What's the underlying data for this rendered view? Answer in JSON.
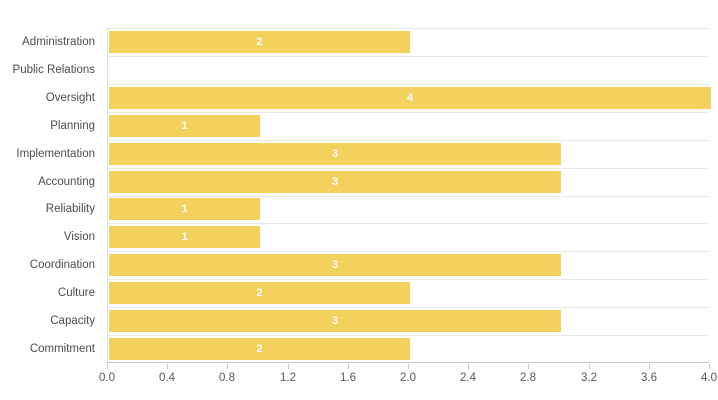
{
  "chart_data": {
    "type": "bar",
    "orientation": "horizontal",
    "title": "",
    "xlabel": "",
    "ylabel": "",
    "categories": [
      "Administration",
      "Public Relations",
      "Oversight",
      "Planning",
      "Implementation",
      "Accounting",
      "Reliability",
      "Vision",
      "Coordination",
      "Culture",
      "Capacity",
      "Commitment"
    ],
    "values": [
      2,
      0,
      4,
      1,
      3,
      3,
      1,
      1,
      3,
      2,
      3,
      2
    ],
    "value_labels": [
      "2",
      "",
      "4",
      "1",
      "3",
      "3",
      "1",
      "1",
      "3",
      "2",
      "3",
      "2"
    ],
    "xlim": [
      0,
      4
    ],
    "x_tick_labels": [
      "0.0",
      "0.4",
      "0.8",
      "1.2",
      "1.6",
      "2.0",
      "2.4",
      "2.8",
      "3.2",
      "3.6",
      "4.0"
    ],
    "grid": "horizontal lines at category boundaries, no vertical gridlines",
    "legend": "none",
    "colors": {
      "bar_fill": "#F4D05C",
      "value_label": "#FFFFFF",
      "gridline": "#E8E8E8",
      "axis_line": "#C9C9C9",
      "category_label": "#4D4D4D",
      "tick_label": "#595959",
      "background": "#FFFFFF"
    }
  }
}
